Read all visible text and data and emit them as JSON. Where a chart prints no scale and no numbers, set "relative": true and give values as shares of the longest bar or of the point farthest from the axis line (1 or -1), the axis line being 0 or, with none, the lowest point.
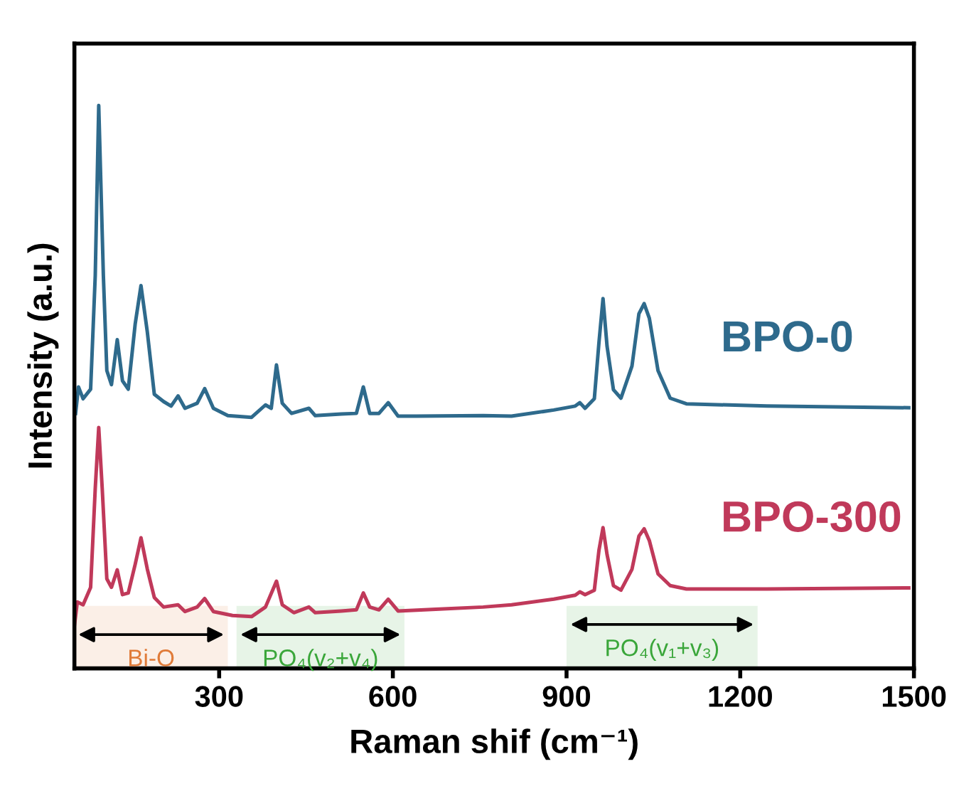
{
  "chart_data": {
    "type": "line",
    "relative": true,
    "xlabel": "Raman shif (cm⁻¹)",
    "ylabel": "Intensity (a.u.)",
    "xlim": [
      50,
      1500
    ],
    "xticks": [
      300,
      600,
      900,
      1200,
      1500
    ],
    "tick_labels": "x",
    "grid": false,
    "legend": false,
    "series": [
      {
        "name": "BPO-0",
        "color": "#2e6a8c",
        "x": [
          52,
          57,
          65,
          78,
          86,
          92,
          100,
          106,
          114,
          124,
          133,
          143,
          155,
          165,
          176,
          188,
          204,
          217,
          229,
          241,
          262,
          275,
          290,
          315,
          356,
          380,
          390,
          399,
          409,
          425,
          455,
          466,
          511,
          537,
          549,
          560,
          576,
          592,
          609,
          641,
          756,
          805,
          878,
          915,
          923,
          932,
          948,
          956,
          963,
          970,
          981,
          994,
          1013,
          1025,
          1034,
          1043,
          1058,
          1079,
          1107,
          1246,
          1491
        ],
        "values": [
          0.453,
          0.5,
          0.479,
          0.496,
          0.698,
          1,
          0.698,
          0.529,
          0.504,
          0.584,
          0.511,
          0.496,
          0.612,
          0.68,
          0.597,
          0.487,
          0.474,
          0.466,
          0.484,
          0.462,
          0.471,
          0.497,
          0.462,
          0.449,
          0.446,
          0.468,
          0.462,
          0.539,
          0.471,
          0.453,
          0.462,
          0.449,
          0.452,
          0.453,
          0.5,
          0.453,
          0.453,
          0.472,
          0.448,
          0.448,
          0.449,
          0.448,
          0.459,
          0.466,
          0.472,
          0.462,
          0.479,
          0.579,
          0.657,
          0.572,
          0.495,
          0.48,
          0.537,
          0.63,
          0.648,
          0.622,
          0.529,
          0.48,
          0.47,
          0.466,
          0.463
        ]
      },
      {
        "name": "BPO-300",
        "color": "#c0395a",
        "x": [
          50,
          55,
          65,
          78,
          86,
          92,
          98,
          106,
          114,
          124,
          133,
          143,
          155,
          165,
          176,
          188,
          204,
          229,
          241,
          262,
          275,
          290,
          323,
          356,
          380,
          399,
          409,
          429,
          455,
          466,
          511,
          537,
          549,
          560,
          576,
          592,
          609,
          674,
          756,
          805,
          878,
          915,
          923,
          932,
          948,
          956,
          963,
          970,
          981,
          994,
          1013,
          1025,
          1034,
          1043,
          1058,
          1079,
          1107,
          1246,
          1491
        ],
        "values": [
          0.076,
          0.118,
          0.113,
          0.144,
          0.32,
          0.428,
          0.32,
          0.159,
          0.144,
          0.175,
          0.131,
          0.134,
          0.185,
          0.232,
          0.176,
          0.126,
          0.109,
          0.113,
          0.101,
          0.109,
          0.124,
          0.101,
          0.094,
          0.092,
          0.109,
          0.155,
          0.113,
          0.099,
          0.109,
          0.099,
          0.102,
          0.104,
          0.134,
          0.109,
          0.104,
          0.123,
          0.102,
          0.105,
          0.109,
          0.113,
          0.123,
          0.13,
          0.136,
          0.131,
          0.139,
          0.21,
          0.25,
          0.202,
          0.147,
          0.139,
          0.176,
          0.235,
          0.248,
          0.227,
          0.168,
          0.147,
          0.141,
          0.141,
          0.143
        ]
      }
    ],
    "bands": [
      {
        "axis": "x",
        "from": 50,
        "to": 315,
        "label": "Bi-O",
        "color": "#e07b39"
      },
      {
        "axis": "x",
        "from": 330,
        "to": 620,
        "label": "PO₄(v₂+v₄)",
        "color": "#3aa63a"
      },
      {
        "axis": "x",
        "from": 900,
        "to": 1230,
        "label": "PO₄(v₁+v₃)",
        "color": "#3aa63a"
      }
    ]
  }
}
